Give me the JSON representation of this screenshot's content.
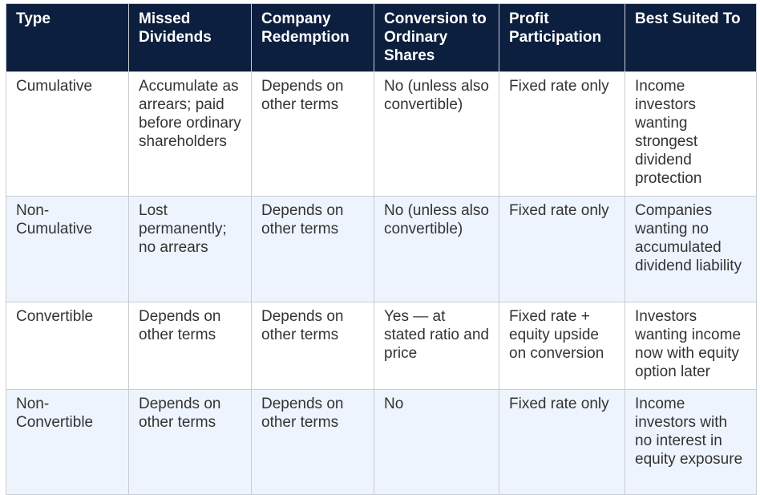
{
  "table": {
    "headers": [
      "Type",
      "Missed Dividends",
      "Company Redemption",
      "Conversion to Ordinary Shares",
      "Profit Participation",
      "Best Suited To"
    ],
    "rows": [
      [
        "Cumulative",
        "Accumulate as arrears; paid before ordinary shareholders",
        "Depends on other terms",
        "No (unless also convertible)",
        "Fixed rate only",
        "Income investors wanting strongest dividend protection"
      ],
      [
        "Non-Cumulative",
        "Lost permanently; no arrears",
        "Depends on other terms",
        "No (unless also convertible)",
        "Fixed rate only",
        "Companies wanting no accumulated dividend liability"
      ],
      [
        "Convertible",
        "Depends on other terms",
        "Depends on other terms",
        "Yes — at stated ratio and price",
        "Fixed rate + equity upside on conversion",
        "Investors wanting income now with equity option later"
      ],
      [
        "Non-Convertible",
        "Depends on other terms",
        "Depends on other terms",
        "No",
        "Fixed rate only",
        "Income investors with no interest in equity exposure"
      ]
    ]
  },
  "colors": {
    "header_background": "#0d1f3f",
    "header_text": "#ffffff",
    "row_alt_background": "#eef4fd",
    "body_text": "#333333",
    "border": "#c9ccd2"
  }
}
